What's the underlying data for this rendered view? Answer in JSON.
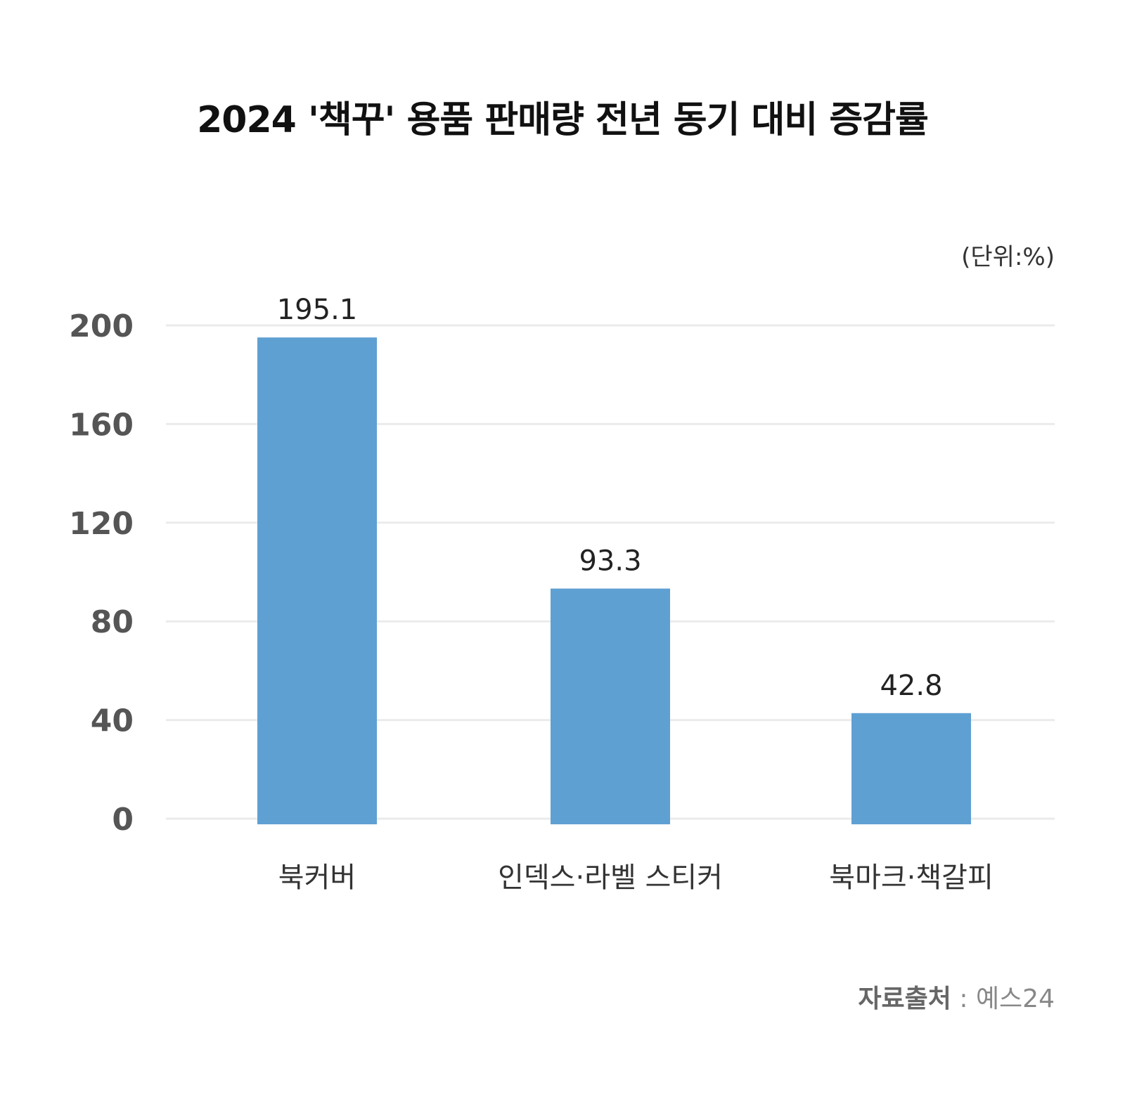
{
  "title": "2024 '책꾸' 용품 판매량 전년 동기 대비 증감률",
  "unit_label": "(단위:%)",
  "source": {
    "label": "자료출처",
    "separator": " : ",
    "value": "예스24"
  },
  "colors": {
    "bar": "#5fa0d3",
    "grid": "#ebebeb",
    "tick": "#555555",
    "value_label": "#222222",
    "category": "#333333"
  },
  "chart_data": {
    "type": "bar",
    "title": "2024 '책꾸' 용품 판매량 전년 동기 대비 증감률",
    "categories": [
      "북커버",
      "인덱스·라벨 스티커",
      "북마크·책갈피"
    ],
    "values": [
      195.1,
      93.3,
      42.8
    ],
    "value_labels": [
      "195.1",
      "93.3",
      "42.8"
    ],
    "yticks": [
      0,
      40,
      80,
      120,
      160,
      200
    ],
    "ylim": [
      0,
      200
    ],
    "grid": true,
    "xlabel": "",
    "ylabel": ""
  }
}
